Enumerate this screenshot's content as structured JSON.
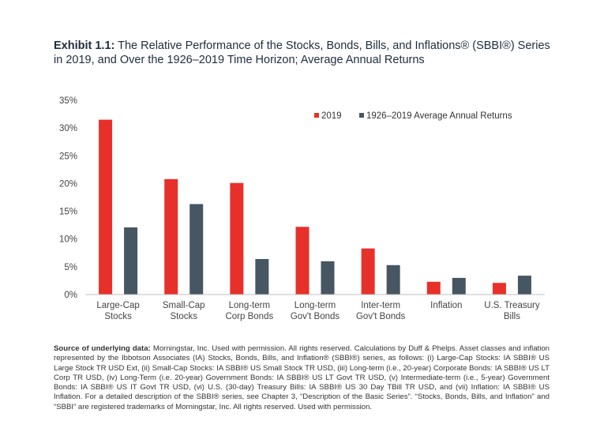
{
  "title": {
    "label": "Exhibit 1.1:",
    "text": "The Relative Performance of the Stocks, Bonds, Bills, and Inflations® (SBBI®) Series in 2019, and Over the 1926–2019 Time Horizon; Average Annual Returns"
  },
  "chart_data": {
    "type": "bar",
    "categories": [
      [
        "Large-Cap",
        "Stocks"
      ],
      [
        "Small-Cap",
        "Stocks"
      ],
      [
        "Long-term",
        "Corp Bonds"
      ],
      [
        "Long-term",
        "Gov't Bonds"
      ],
      [
        "Inter-term",
        "Gov't Bonds"
      ],
      [
        "Inflation"
      ],
      [
        "U.S. Treasury",
        "Bills"
      ]
    ],
    "series": [
      {
        "name": "2019",
        "color": "#e8302a",
        "values": [
          31.5,
          20.8,
          20.1,
          12.2,
          8.3,
          2.3,
          2.1
        ]
      },
      {
        "name": "1926–2019 Average Annual Returns",
        "color": "#465662",
        "values": [
          12.1,
          16.3,
          6.4,
          6.0,
          5.3,
          3.0,
          3.4
        ]
      }
    ],
    "ylim": [
      0,
      35
    ],
    "yticks": [
      "0%",
      "5%",
      "10%",
      "15%",
      "20%",
      "25%",
      "30%",
      "35%"
    ],
    "ytick_values": [
      0,
      5,
      10,
      15,
      20,
      25,
      30,
      35
    ],
    "legend_position": "top-right",
    "grid": false
  },
  "note": {
    "label": "Source of underlying data:",
    "text": "Morningstar, Inc. Used with permission. All rights reserved. Calculations by Duff & Phelps. Asset classes and inflation represented by the Ibbotson Associates (IA) Stocks, Bonds, Bills, and Inflation® (SBBI®) series, as follows: (i) Large-Cap Stocks: IA SBBI® US Large Stock TR USD Ext, (ii) Small-Cap Stocks: IA SBBI® US Small Stock TR USD, (iii) Long-term (i.e., 20-year) Corporate Bonds: IA SBBI® US LT Corp TR USD, (iv) Long-Term (i.e. 20-year) Government Bonds: IA SBBI® US LT Govt TR USD, (v) Intermediate-term (i.e., 5-year) Government Bonds: IA SBBI® US IT Govt TR USD, (vi) U.S. (30-day) Treasury Bills: IA SBBI® US 30 Day TBill TR USD, and (vii) Inflation: IA SBBI® US Inflation. For a detailed description of the SBBI® series, see Chapter 3, “Description of the Basic Series”. “Stocks, Bonds, Bills, and Inflation” and “SBBI” are registered trademarks of Morningstar, Inc. All rights reserved. Used with permission."
  }
}
